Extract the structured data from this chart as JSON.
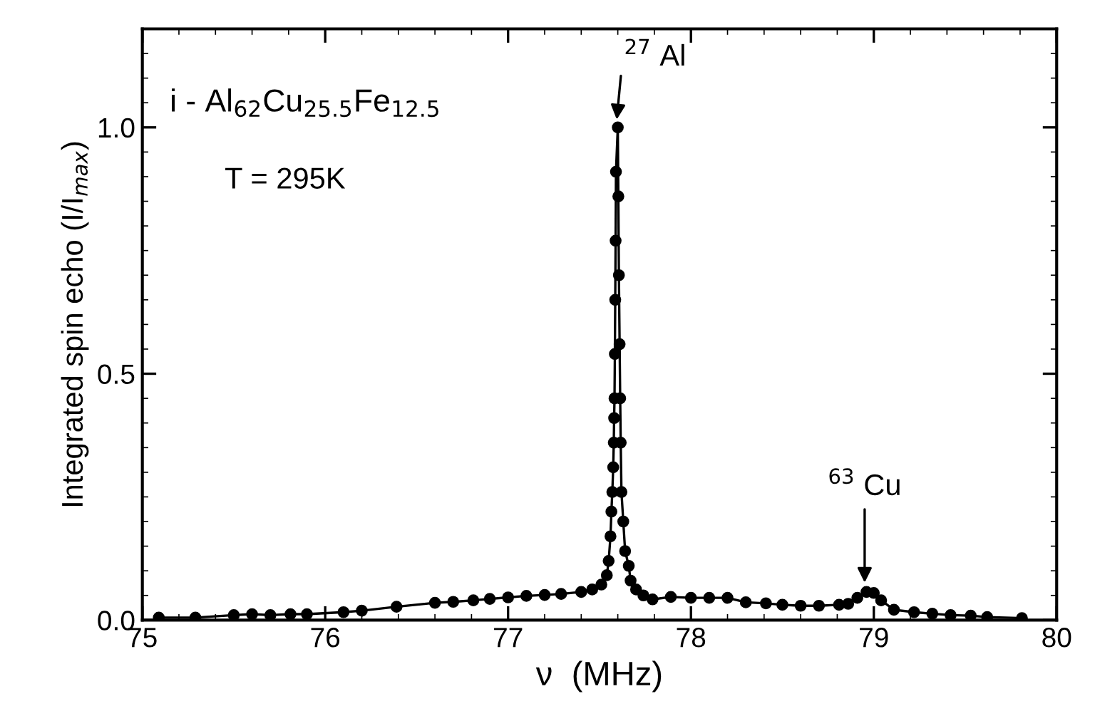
{
  "chart_data": {
    "type": "line",
    "xlabel": "ν  (MHz)",
    "ylabel": "Integrated spin echo (I/I$_{max}$)",
    "annotations": [
      "i - Al$_{62}$Cu$_{25.5}$Fe$_{12.5}$",
      "T = 295K",
      {
        "text": "$^{27}$ Al",
        "x": 77.59,
        "y": 1.0
      },
      {
        "text": "$^{63}$ Cu",
        "x": 78.95,
        "y": 0.06
      }
    ],
    "xlim": [
      75,
      80
    ],
    "xticks": [
      75,
      76,
      77,
      78,
      79,
      80
    ],
    "ylim": [
      0,
      1.2
    ],
    "yticks": [
      {
        "value": 0,
        "label": "0.0"
      },
      0.5,
      {
        "value": 1,
        "label": "1.0"
      }
    ],
    "marker": "circle",
    "line_style": "solid",
    "grid": false,
    "legend": false,
    "series": [
      {
        "color": "#000000",
        "x": [
          75.09,
          75.29,
          75.5,
          75.6,
          75.7,
          75.81,
          75.9,
          76.1,
          76.2,
          76.39,
          76.6,
          76.7,
          76.81,
          76.9,
          77.0,
          77.1,
          77.2,
          77.29,
          77.4,
          77.46,
          77.51,
          77.54,
          77.55,
          77.56,
          77.565,
          77.57,
          77.575,
          77.578,
          77.58,
          77.582,
          77.584,
          77.586,
          77.588,
          77.59,
          77.6,
          77.603,
          77.606,
          77.61,
          77.613,
          77.616,
          77.62,
          77.63,
          77.64,
          77.66,
          77.67,
          77.7,
          77.74,
          77.79,
          77.89,
          78.0,
          78.1,
          78.2,
          78.3,
          78.41,
          78.5,
          78.6,
          78.7,
          78.81,
          78.86,
          78.91,
          78.96,
          79.0,
          79.04,
          79.11,
          79.22,
          79.32,
          79.42,
          79.53,
          79.62,
          79.81
        ],
        "values": [
          0.005,
          0.005,
          0.01,
          0.012,
          0.01,
          0.012,
          0.012,
          0.016,
          0.019,
          0.027,
          0.035,
          0.037,
          0.04,
          0.043,
          0.046,
          0.049,
          0.051,
          0.053,
          0.057,
          0.062,
          0.072,
          0.091,
          0.12,
          0.17,
          0.22,
          0.26,
          0.31,
          0.36,
          0.41,
          0.45,
          0.54,
          0.65,
          0.77,
          0.91,
          1.0,
          0.86,
          0.7,
          0.56,
          0.45,
          0.36,
          0.26,
          0.2,
          0.14,
          0.11,
          0.08,
          0.062,
          0.05,
          0.042,
          0.047,
          0.045,
          0.045,
          0.045,
          0.036,
          0.034,
          0.031,
          0.029,
          0.029,
          0.031,
          0.033,
          0.045,
          0.057,
          0.055,
          0.04,
          0.021,
          0.016,
          0.013,
          0.01,
          0.009,
          0.006,
          0.004
        ]
      }
    ]
  }
}
